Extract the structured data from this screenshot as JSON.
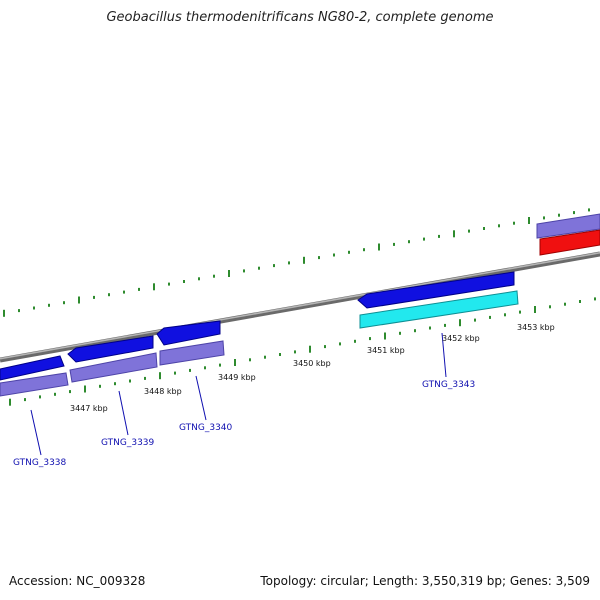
{
  "title": "Geobacillus thermodenitrificans NG80-2, complete genome",
  "accession": "Accession: NC_009328",
  "stats": "Topology: circular; Length: 3,550,319 bp; Genes: 3,509",
  "kbp_labels": [
    "3447 kbp",
    "3448 kbp",
    "3449 kbp",
    "3450 kbp",
    "3451 kbp",
    "3452 kbp",
    "3453 kbp"
  ],
  "genes": [
    "GTNG_3338",
    "GTNG_3339",
    "GTNG_3340",
    "GTNG_3343"
  ],
  "colors": {
    "backbone": "#8a8a8a",
    "gene_blue": "#1010e0",
    "cds_purple": "#7f73d9",
    "cds_cyan": "#22e8ee",
    "rna_red": "#f01010",
    "tick_green": "#2e8b2e",
    "label_blue": "#1010b0"
  }
}
